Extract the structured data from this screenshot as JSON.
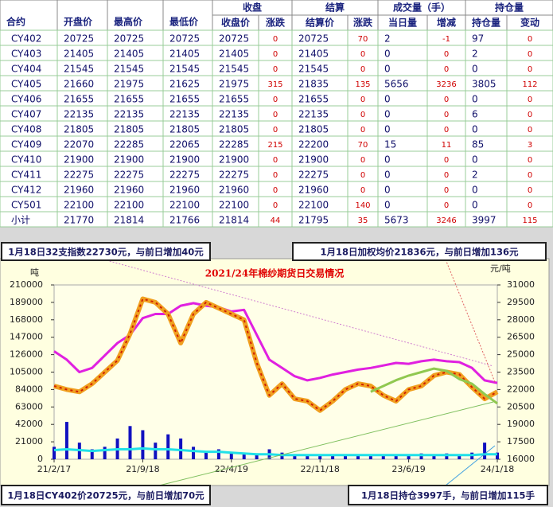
{
  "table": {
    "head": [
      "合约",
      "开盘价",
      "最高价",
      "最低价"
    ],
    "groups": [
      "收盘",
      "结算",
      "成交量（手）",
      "持仓量"
    ],
    "subheads": [
      "收盘价",
      "涨跌",
      "结算价",
      "涨跌",
      "当日量",
      "增减",
      "持仓量",
      "变动"
    ],
    "rows": [
      [
        "CY402",
        20725,
        20725,
        20725,
        20725,
        0,
        20725,
        70,
        2,
        -1,
        97,
        0
      ],
      [
        "CY403",
        21405,
        21405,
        21405,
        21405,
        0,
        21405,
        0,
        0,
        0,
        2,
        0
      ],
      [
        "CY404",
        21545,
        21545,
        21545,
        21545,
        0,
        21545,
        0,
        0,
        0,
        0,
        0
      ],
      [
        "CY405",
        21660,
        21975,
        21625,
        21975,
        315,
        21835,
        135,
        5656,
        3236,
        3805,
        112
      ],
      [
        "CY406",
        21655,
        21655,
        21655,
        21655,
        0,
        21655,
        0,
        0,
        0,
        0,
        0
      ],
      [
        "CY407",
        22135,
        22135,
        22135,
        22135,
        0,
        22135,
        0,
        0,
        0,
        6,
        0
      ],
      [
        "CY408",
        21805,
        21805,
        21805,
        21805,
        0,
        21805,
        0,
        0,
        0,
        0,
        0
      ],
      [
        "CY409",
        22070,
        22285,
        22065,
        22285,
        215,
        22200,
        70,
        15,
        11,
        85,
        3
      ],
      [
        "CY410",
        21900,
        21900,
        21900,
        21900,
        0,
        21900,
        0,
        0,
        0,
        0,
        0
      ],
      [
        "CY411",
        22275,
        22275,
        22275,
        22275,
        0,
        22275,
        0,
        0,
        0,
        2,
        0
      ],
      [
        "CY412",
        21960,
        21960,
        21960,
        21960,
        0,
        21960,
        0,
        0,
        0,
        0,
        0
      ],
      [
        "CY501",
        22100,
        22100,
        22100,
        22100,
        0,
        22100,
        140,
        0,
        0,
        0,
        0
      ],
      [
        "小计",
        21770,
        21814,
        21766,
        21814,
        44,
        21795,
        35,
        5673,
        3246,
        3997,
        115
      ]
    ]
  },
  "chart_data": {
    "type": "combo",
    "title": "2021/24年棉纱期货日交易情况",
    "y_label": "吨",
    "y2_label": "元/吨",
    "annotations": [
      "1月18日32支指数22730元，与前日增加40元",
      "1月18日加权均价21836元，与前日增加136元",
      "1月18日CY402价20725元，与前日增加70元",
      "1月18日持仓3997手，与前日增加115手"
    ],
    "x": [
      0,
      1,
      2,
      3,
      4,
      5,
      6,
      7,
      8,
      9,
      10,
      11,
      12,
      13,
      14,
      15,
      16,
      17,
      18,
      19,
      20,
      21,
      22,
      23,
      24,
      25,
      26,
      27,
      28,
      29,
      30,
      31,
      32,
      33,
      34,
      35
    ],
    "xlim": [
      0,
      35
    ],
    "xticks": [
      {
        "value": 0,
        "label": "21/2/17"
      },
      {
        "value": 7,
        "label": "21/9/18"
      },
      {
        "value": 14,
        "label": "22/4/19"
      },
      {
        "value": 21,
        "label": "22/11/18"
      },
      {
        "value": 28,
        "label": "23/6/19"
      },
      {
        "value": 35,
        "label": "24/1/18"
      }
    ],
    "ylim": [
      0,
      210000
    ],
    "yticks": [
      0,
      21000,
      42000,
      63000,
      84000,
      105000,
      126000,
      147000,
      168000,
      189000,
      210000
    ],
    "y2lim": [
      16000,
      31000
    ],
    "y2ticks": [
      16000,
      17500,
      19000,
      20500,
      22000,
      23500,
      25000,
      26500,
      28000,
      29500,
      31000
    ],
    "series": [
      {
        "kind": "bar",
        "color": "#1010c0",
        "values": [
          15000,
          45000,
          20000,
          12000,
          15000,
          25000,
          40000,
          35000,
          20000,
          30000,
          25000,
          15000,
          10000,
          12000,
          8000,
          6000,
          5000,
          12000,
          8000,
          5000,
          4000,
          5000,
          4000,
          5000,
          6000,
          5000,
          6000,
          5000,
          6000,
          7000,
          6000,
          7000,
          5000,
          8000,
          20000,
          8000
        ]
      },
      {
        "kind": "line",
        "color": "#20e0e8",
        "values": [
          11000,
          12000,
          11000,
          10000,
          11000,
          12000,
          12000,
          13000,
          12000,
          12000,
          11000,
          10000,
          9000,
          9000,
          8000,
          7000,
          6000,
          6000,
          5000,
          5000,
          5000,
          5000,
          5000,
          5000,
          5000,
          5000,
          5000,
          5000,
          5000,
          5000,
          5000,
          5000,
          5000,
          5000,
          6000,
          6000
        ]
      },
      {
        "kind": "line",
        "color": "#e020e0",
        "values": [
          130000,
          120000,
          105000,
          110000,
          125000,
          140000,
          150000,
          170000,
          175000,
          175000,
          185000,
          188000,
          185000,
          183000,
          178000,
          180000,
          150000,
          120000,
          110000,
          100000,
          95000,
          98000,
          102000,
          105000,
          108000,
          110000,
          113000,
          116000,
          115000,
          118000,
          120000,
          118000,
          117000,
          110000,
          95000,
          92000
        ]
      },
      {
        "kind": "price",
        "color": "#f0a020",
        "axis": "y2",
        "values": [
          22300,
          22000,
          21800,
          22500,
          23500,
          24500,
          26800,
          29800,
          29500,
          28500,
          26000,
          28500,
          29500,
          29000,
          28500,
          28000,
          24300,
          21500,
          22500,
          21200,
          21000,
          20200,
          21000,
          22000,
          22500,
          22300,
          21500,
          21000,
          22000,
          22300,
          23200,
          23500,
          23300,
          22200,
          21200,
          21800
        ]
      },
      {
        "kind": "line",
        "color": "#90c850",
        "axis": "y2",
        "values": [
          null,
          null,
          null,
          null,
          null,
          null,
          null,
          null,
          null,
          null,
          null,
          null,
          null,
          null,
          null,
          null,
          null,
          null,
          null,
          null,
          null,
          null,
          null,
          null,
          null,
          21800,
          22300,
          22800,
          23200,
          23500,
          23800,
          23600,
          22900,
          22500,
          21600,
          20800
        ]
      }
    ]
  }
}
